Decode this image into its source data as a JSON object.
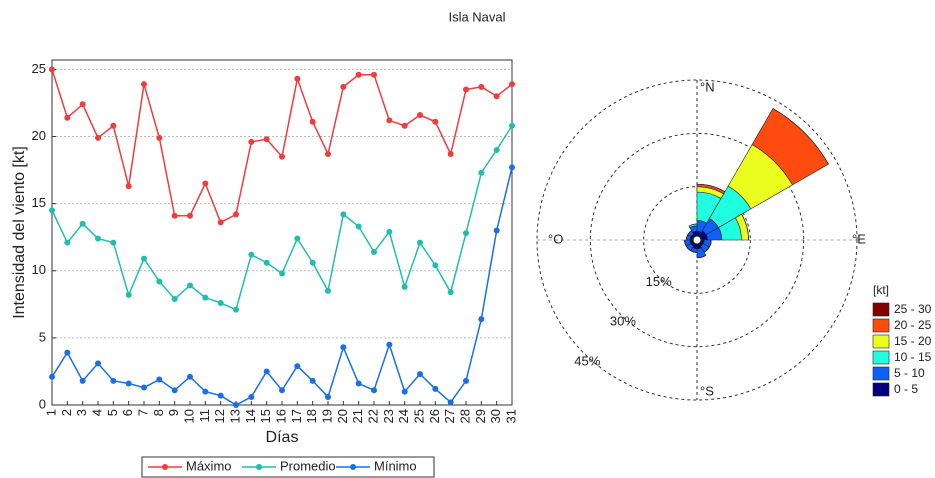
{
  "title": "Isla Naval",
  "chart_data": [
    {
      "type": "line",
      "xlabel": "Días",
      "ylabel": "Intensidad del viento [kt]",
      "x": [
        1,
        2,
        3,
        4,
        5,
        6,
        7,
        8,
        9,
        10,
        11,
        12,
        13,
        14,
        15,
        16,
        17,
        18,
        19,
        20,
        21,
        22,
        23,
        24,
        25,
        26,
        27,
        28,
        29,
        30,
        31
      ],
      "xlim": [
        1,
        31
      ],
      "xticks": [
        1,
        2,
        3,
        4,
        5,
        6,
        7,
        8,
        9,
        10,
        11,
        12,
        13,
        14,
        15,
        16,
        17,
        18,
        19,
        20,
        21,
        22,
        23,
        24,
        25,
        26,
        27,
        28,
        29,
        30,
        31
      ],
      "ylim": [
        0,
        25.7
      ],
      "yticks": [
        0,
        5,
        10,
        15,
        20,
        25
      ],
      "grid": true,
      "legend": "bottom",
      "series": [
        {
          "name": "Máximo",
          "color": "#f03c3c",
          "values": [
            25.0,
            21.4,
            22.4,
            19.9,
            20.8,
            16.3,
            23.9,
            19.9,
            14.1,
            14.1,
            16.5,
            13.6,
            14.2,
            19.6,
            19.8,
            18.5,
            24.3,
            21.1,
            18.7,
            23.7,
            24.6,
            24.6,
            21.2,
            20.8,
            21.6,
            21.1,
            18.7,
            23.5,
            23.7,
            23.0,
            23.9
          ]
        },
        {
          "name": "Promedio",
          "color": "#1fbfb0",
          "values": [
            14.5,
            12.1,
            13.5,
            12.4,
            12.1,
            8.2,
            10.9,
            9.2,
            7.9,
            8.9,
            8.0,
            7.6,
            7.1,
            11.2,
            10.6,
            9.8,
            12.4,
            10.6,
            8.5,
            14.2,
            13.3,
            11.4,
            12.9,
            8.8,
            12.1,
            10.4,
            8.4,
            12.8,
            17.3,
            19.0,
            20.8
          ]
        },
        {
          "name": "Mínimo",
          "color": "#1a6fe8",
          "values": [
            2.1,
            3.9,
            1.8,
            3.1,
            1.8,
            1.6,
            1.3,
            1.9,
            1.1,
            2.1,
            1.0,
            0.7,
            0.0,
            0.6,
            2.5,
            1.1,
            2.9,
            1.8,
            0.6,
            4.3,
            1.6,
            1.1,
            4.5,
            1.0,
            2.3,
            1.2,
            0.2,
            1.8,
            6.4,
            13.0,
            17.7
          ]
        }
      ]
    },
    {
      "type": "windrose",
      "directions": [
        15,
        45,
        75,
        105,
        135,
        165,
        195,
        225,
        255,
        285,
        315,
        345
      ],
      "rlim": [
        0,
        45
      ],
      "rticks": [
        {
          "value": 15,
          "label": "15%"
        },
        {
          "value": 30,
          "label": "30%"
        },
        {
          "value": 45,
          "label": "45%"
        }
      ],
      "direction_labels": [
        {
          "value": 0,
          "label": "°N"
        },
        {
          "value": 90,
          "label": "°E"
        },
        {
          "value": 180,
          "label": "°S"
        },
        {
          "value": 270,
          "label": "°O"
        }
      ],
      "legend_title": "[kt]",
      "series": [
        {
          "name": "0 - 5",
          "color": "#00007f",
          "values": [
            2.5,
            3,
            3,
            2,
            2,
            2.5,
            2.5,
            2,
            2,
            2,
            2,
            2.5
          ]
        },
        {
          "name": "5 - 10",
          "color": "#1060ff",
          "values": [
            3,
            4,
            4,
            2,
            2,
            2.5,
            1,
            1.5,
            1.5,
            1,
            1,
            1.5
          ]
        },
        {
          "name": "10 - 15",
          "color": "#20ffe0",
          "values": [
            8,
            10.5,
            5.5,
            0,
            0,
            0,
            0,
            0,
            0,
            0,
            0,
            0.5
          ]
        },
        {
          "name": "15 - 20",
          "color": "#eaff20",
          "values": [
            1.5,
            13.5,
            2,
            0,
            0,
            0,
            0,
            0,
            0,
            0,
            0,
            0
          ]
        },
        {
          "name": "20 - 25",
          "color": "#ff4a10",
          "values": [
            0.7,
            11.7,
            0,
            0,
            0,
            0,
            0,
            0,
            0,
            0,
            0,
            0
          ]
        },
        {
          "name": "25 - 30",
          "color": "#7f0000",
          "values": [
            0,
            0,
            0,
            0,
            0,
            0,
            0,
            0,
            0,
            0,
            0,
            0
          ]
        }
      ]
    }
  ]
}
